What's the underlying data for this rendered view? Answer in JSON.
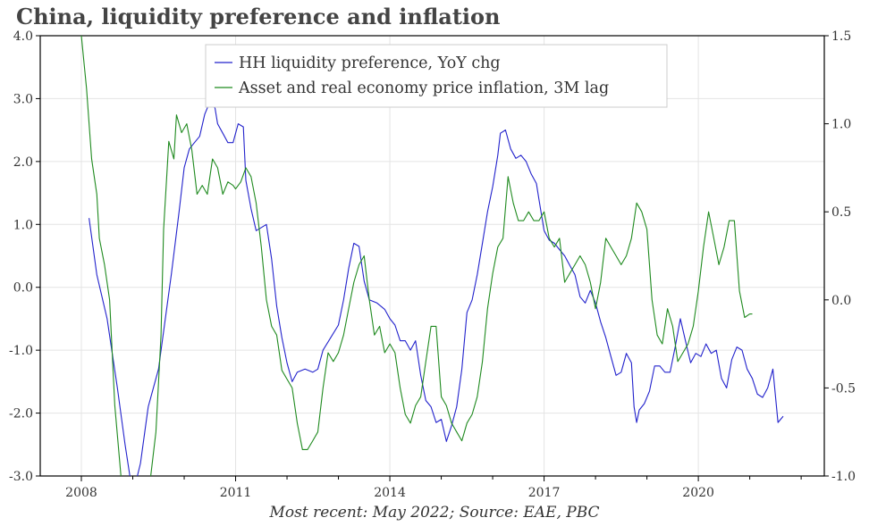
{
  "chart_data": {
    "type": "line",
    "title": "China, liquidity preference and inflation",
    "source": "Most recent: May 2022; Source: EAE, PBC",
    "x_ticks": [
      "2008",
      "2011",
      "2014",
      "2017",
      "2020"
    ],
    "y_left": {
      "ylim": [
        -3.0,
        4.0
      ],
      "ticks": [
        "-3.0",
        "-2.0",
        "-1.0",
        "0.0",
        "1.0",
        "2.0",
        "3.0",
        "4.0"
      ]
    },
    "y_right": {
      "ylim": [
        -1.0,
        1.5
      ],
      "ticks": [
        "-1.0",
        "-0.5",
        "0.0",
        "0.5",
        "1.0",
        "1.5"
      ]
    },
    "grid": true,
    "legend_position": "top-center",
    "series": [
      {
        "name": "HH liquidity preference, YoY chg",
        "axis": "left",
        "color": "#2222cc",
        "points": [
          [
            2008.15,
            1.1
          ],
          [
            2008.3,
            0.2
          ],
          [
            2008.5,
            -0.5
          ],
          [
            2008.7,
            -1.6
          ],
          [
            2008.85,
            -2.5
          ],
          [
            2009.0,
            -3.3
          ],
          [
            2009.15,
            -2.8
          ],
          [
            2009.3,
            -1.9
          ],
          [
            2009.5,
            -1.3
          ],
          [
            2009.6,
            -0.7
          ],
          [
            2009.75,
            0.2
          ],
          [
            2009.9,
            1.2
          ],
          [
            2010.0,
            1.9
          ],
          [
            2010.1,
            2.2
          ],
          [
            2010.2,
            2.3
          ],
          [
            2010.3,
            2.4
          ],
          [
            2010.4,
            2.75
          ],
          [
            2010.5,
            2.95
          ],
          [
            2010.6,
            2.85
          ],
          [
            2010.65,
            2.6
          ],
          [
            2010.75,
            2.45
          ],
          [
            2010.85,
            2.3
          ],
          [
            2010.95,
            2.3
          ],
          [
            2011.05,
            2.6
          ],
          [
            2011.15,
            2.55
          ],
          [
            2011.2,
            1.7
          ],
          [
            2011.3,
            1.25
          ],
          [
            2011.4,
            0.9
          ],
          [
            2011.5,
            0.95
          ],
          [
            2011.6,
            1.0
          ],
          [
            2011.7,
            0.45
          ],
          [
            2011.8,
            -0.3
          ],
          [
            2011.9,
            -0.8
          ],
          [
            2012.0,
            -1.2
          ],
          [
            2012.1,
            -1.5
          ],
          [
            2012.2,
            -1.35
          ],
          [
            2012.35,
            -1.3
          ],
          [
            2012.5,
            -1.35
          ],
          [
            2012.6,
            -1.3
          ],
          [
            2012.7,
            -1.0
          ],
          [
            2012.85,
            -0.8
          ],
          [
            2013.0,
            -0.6
          ],
          [
            2013.1,
            -0.2
          ],
          [
            2013.2,
            0.3
          ],
          [
            2013.3,
            0.7
          ],
          [
            2013.4,
            0.65
          ],
          [
            2013.5,
            0.1
          ],
          [
            2013.6,
            -0.2
          ],
          [
            2013.75,
            -0.25
          ],
          [
            2013.9,
            -0.35
          ],
          [
            2014.0,
            -0.5
          ],
          [
            2014.1,
            -0.6
          ],
          [
            2014.2,
            -0.85
          ],
          [
            2014.3,
            -0.85
          ],
          [
            2014.4,
            -1.0
          ],
          [
            2014.5,
            -0.85
          ],
          [
            2014.6,
            -1.4
          ],
          [
            2014.7,
            -1.8
          ],
          [
            2014.8,
            -1.9
          ],
          [
            2014.9,
            -2.15
          ],
          [
            2015.0,
            -2.1
          ],
          [
            2015.1,
            -2.45
          ],
          [
            2015.2,
            -2.2
          ],
          [
            2015.3,
            -1.9
          ],
          [
            2015.4,
            -1.3
          ],
          [
            2015.5,
            -0.4
          ],
          [
            2015.6,
            -0.2
          ],
          [
            2015.7,
            0.2
          ],
          [
            2015.8,
            0.7
          ],
          [
            2015.9,
            1.2
          ],
          [
            2016.0,
            1.6
          ],
          [
            2016.1,
            2.1
          ],
          [
            2016.15,
            2.45
          ],
          [
            2016.25,
            2.5
          ],
          [
            2016.35,
            2.2
          ],
          [
            2016.45,
            2.05
          ],
          [
            2016.55,
            2.1
          ],
          [
            2016.65,
            2.0
          ],
          [
            2016.75,
            1.8
          ],
          [
            2016.85,
            1.65
          ],
          [
            2016.9,
            1.4
          ],
          [
            2017.0,
            0.9
          ],
          [
            2017.1,
            0.75
          ],
          [
            2017.2,
            0.7
          ],
          [
            2017.3,
            0.6
          ],
          [
            2017.4,
            0.5
          ],
          [
            2017.5,
            0.35
          ],
          [
            2017.6,
            0.2
          ],
          [
            2017.7,
            -0.15
          ],
          [
            2017.8,
            -0.25
          ],
          [
            2017.9,
            -0.05
          ],
          [
            2018.0,
            -0.25
          ],
          [
            2018.1,
            -0.55
          ],
          [
            2018.2,
            -0.8
          ],
          [
            2018.3,
            -1.1
          ],
          [
            2018.4,
            -1.4
          ],
          [
            2018.5,
            -1.35
          ],
          [
            2018.6,
            -1.05
          ],
          [
            2018.7,
            -1.2
          ],
          [
            2018.75,
            -1.9
          ],
          [
            2018.8,
            -2.15
          ],
          [
            2018.85,
            -1.95
          ],
          [
            2018.95,
            -1.85
          ],
          [
            2019.05,
            -1.65
          ],
          [
            2019.15,
            -1.25
          ],
          [
            2019.25,
            -1.25
          ],
          [
            2019.35,
            -1.35
          ],
          [
            2019.45,
            -1.35
          ],
          [
            2019.55,
            -0.95
          ],
          [
            2019.65,
            -0.5
          ],
          [
            2019.75,
            -0.85
          ],
          [
            2019.85,
            -1.2
          ],
          [
            2019.95,
            -1.05
          ],
          [
            2020.05,
            -1.1
          ],
          [
            2020.15,
            -0.9
          ],
          [
            2020.25,
            -1.05
          ],
          [
            2020.35,
            -1.0
          ],
          [
            2020.45,
            -1.45
          ],
          [
            2020.55,
            -1.6
          ],
          [
            2020.65,
            -1.15
          ],
          [
            2020.75,
            -0.95
          ],
          [
            2020.85,
            -1.0
          ],
          [
            2020.95,
            -1.3
          ],
          [
            2021.05,
            -1.45
          ],
          [
            2021.15,
            -1.7
          ],
          [
            2021.25,
            -1.75
          ],
          [
            2021.35,
            -1.6
          ],
          [
            2021.45,
            -1.3
          ],
          [
            2021.55,
            -2.15
          ],
          [
            2021.65,
            -2.05
          ]
        ]
      },
      {
        "name": "Asset and real economy price inflation, 3M lag",
        "axis": "right",
        "color": "#1f8a1f",
        "points": [
          [
            2008.0,
            1.5
          ],
          [
            2008.1,
            1.2
          ],
          [
            2008.2,
            0.8
          ],
          [
            2008.3,
            0.6
          ],
          [
            2008.35,
            0.35
          ],
          [
            2008.45,
            0.2
          ],
          [
            2008.55,
            0.0
          ],
          [
            2008.65,
            -0.6
          ],
          [
            2008.8,
            -1.1
          ],
          [
            2009.0,
            -1.2
          ],
          [
            2009.2,
            -1.1
          ],
          [
            2009.35,
            -1.0
          ],
          [
            2009.45,
            -0.75
          ],
          [
            2009.55,
            -0.2
          ],
          [
            2009.6,
            0.4
          ],
          [
            2009.7,
            0.9
          ],
          [
            2009.8,
            0.8
          ],
          [
            2009.85,
            1.05
          ],
          [
            2009.95,
            0.95
          ],
          [
            2010.05,
            1.0
          ],
          [
            2010.15,
            0.85
          ],
          [
            2010.25,
            0.6
          ],
          [
            2010.35,
            0.65
          ],
          [
            2010.45,
            0.6
          ],
          [
            2010.55,
            0.8
          ],
          [
            2010.65,
            0.75
          ],
          [
            2010.75,
            0.6
          ],
          [
            2010.85,
            0.67
          ],
          [
            2010.95,
            0.65
          ],
          [
            2011.0,
            0.63
          ],
          [
            2011.1,
            0.67
          ],
          [
            2011.2,
            0.75
          ],
          [
            2011.3,
            0.7
          ],
          [
            2011.4,
            0.55
          ],
          [
            2011.5,
            0.3
          ],
          [
            2011.6,
            0.0
          ],
          [
            2011.7,
            -0.15
          ],
          [
            2011.8,
            -0.2
          ],
          [
            2011.9,
            -0.4
          ],
          [
            2012.0,
            -0.45
          ],
          [
            2012.1,
            -0.5
          ],
          [
            2012.2,
            -0.7
          ],
          [
            2012.3,
            -0.85
          ],
          [
            2012.4,
            -0.85
          ],
          [
            2012.5,
            -0.8
          ],
          [
            2012.6,
            -0.75
          ],
          [
            2012.7,
            -0.5
          ],
          [
            2012.8,
            -0.3
          ],
          [
            2012.9,
            -0.35
          ],
          [
            2013.0,
            -0.3
          ],
          [
            2013.1,
            -0.2
          ],
          [
            2013.2,
            -0.05
          ],
          [
            2013.3,
            0.1
          ],
          [
            2013.4,
            0.2
          ],
          [
            2013.5,
            0.25
          ],
          [
            2013.6,
            0.0
          ],
          [
            2013.7,
            -0.2
          ],
          [
            2013.8,
            -0.15
          ],
          [
            2013.9,
            -0.3
          ],
          [
            2014.0,
            -0.25
          ],
          [
            2014.1,
            -0.3
          ],
          [
            2014.2,
            -0.5
          ],
          [
            2014.3,
            -0.65
          ],
          [
            2014.4,
            -0.7
          ],
          [
            2014.5,
            -0.6
          ],
          [
            2014.6,
            -0.55
          ],
          [
            2014.7,
            -0.35
          ],
          [
            2014.8,
            -0.15
          ],
          [
            2014.9,
            -0.15
          ],
          [
            2015.0,
            -0.55
          ],
          [
            2015.1,
            -0.6
          ],
          [
            2015.2,
            -0.7
          ],
          [
            2015.3,
            -0.75
          ],
          [
            2015.4,
            -0.8
          ],
          [
            2015.5,
            -0.7
          ],
          [
            2015.6,
            -0.65
          ],
          [
            2015.7,
            -0.55
          ],
          [
            2015.8,
            -0.35
          ],
          [
            2015.9,
            -0.05
          ],
          [
            2016.0,
            0.15
          ],
          [
            2016.1,
            0.3
          ],
          [
            2016.2,
            0.35
          ],
          [
            2016.3,
            0.7
          ],
          [
            2016.4,
            0.55
          ],
          [
            2016.5,
            0.45
          ],
          [
            2016.6,
            0.45
          ],
          [
            2016.7,
            0.5
          ],
          [
            2016.8,
            0.45
          ],
          [
            2016.9,
            0.45
          ],
          [
            2017.0,
            0.5
          ],
          [
            2017.1,
            0.35
          ],
          [
            2017.2,
            0.3
          ],
          [
            2017.3,
            0.35
          ],
          [
            2017.4,
            0.1
          ],
          [
            2017.5,
            0.15
          ],
          [
            2017.6,
            0.2
          ],
          [
            2017.7,
            0.25
          ],
          [
            2017.8,
            0.2
          ],
          [
            2017.9,
            0.1
          ],
          [
            2018.0,
            -0.05
          ],
          [
            2018.1,
            0.1
          ],
          [
            2018.2,
            0.35
          ],
          [
            2018.3,
            0.3
          ],
          [
            2018.4,
            0.25
          ],
          [
            2018.5,
            0.2
          ],
          [
            2018.6,
            0.25
          ],
          [
            2018.7,
            0.35
          ],
          [
            2018.8,
            0.55
          ],
          [
            2018.9,
            0.5
          ],
          [
            2019.0,
            0.4
          ],
          [
            2019.1,
            0.0
          ],
          [
            2019.2,
            -0.2
          ],
          [
            2019.3,
            -0.25
          ],
          [
            2019.4,
            -0.05
          ],
          [
            2019.5,
            -0.15
          ],
          [
            2019.6,
            -0.35
          ],
          [
            2019.7,
            -0.3
          ],
          [
            2019.8,
            -0.25
          ],
          [
            2019.9,
            -0.15
          ],
          [
            2020.0,
            0.05
          ],
          [
            2020.1,
            0.3
          ],
          [
            2020.2,
            0.5
          ],
          [
            2020.3,
            0.35
          ],
          [
            2020.4,
            0.2
          ],
          [
            2020.5,
            0.3
          ],
          [
            2020.6,
            0.45
          ],
          [
            2020.7,
            0.45
          ],
          [
            2020.8,
            0.05
          ],
          [
            2020.9,
            -0.1
          ],
          [
            2021.0,
            -0.08
          ],
          [
            2021.05,
            -0.08
          ]
        ]
      }
    ]
  }
}
